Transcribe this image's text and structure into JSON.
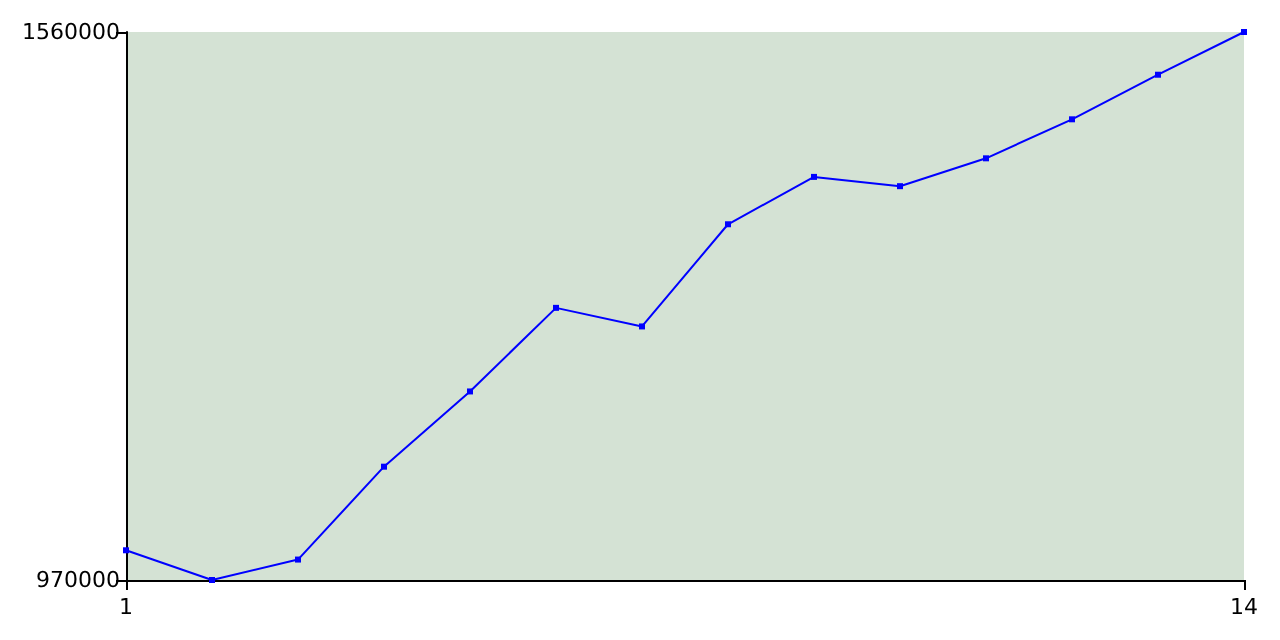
{
  "chart_data": {
    "type": "line",
    "x": [
      1,
      2,
      3,
      4,
      5,
      6,
      7,
      8,
      9,
      10,
      11,
      12,
      13,
      14
    ],
    "series": [
      {
        "color": "#0000ff",
        "values": [
          1002000,
          970000,
          992000,
          1092000,
          1173000,
          1263000,
          1243000,
          1353000,
          1404000,
          1394000,
          1424000,
          1466000,
          1514000,
          1560000
        ]
      }
    ],
    "xlim": [
      1,
      14
    ],
    "xticks": [
      1,
      14
    ],
    "ylim": [
      970000,
      1560000
    ],
    "yticks": [
      970000,
      1560000
    ],
    "grid": false,
    "marker": "square",
    "line_style": "solid"
  }
}
